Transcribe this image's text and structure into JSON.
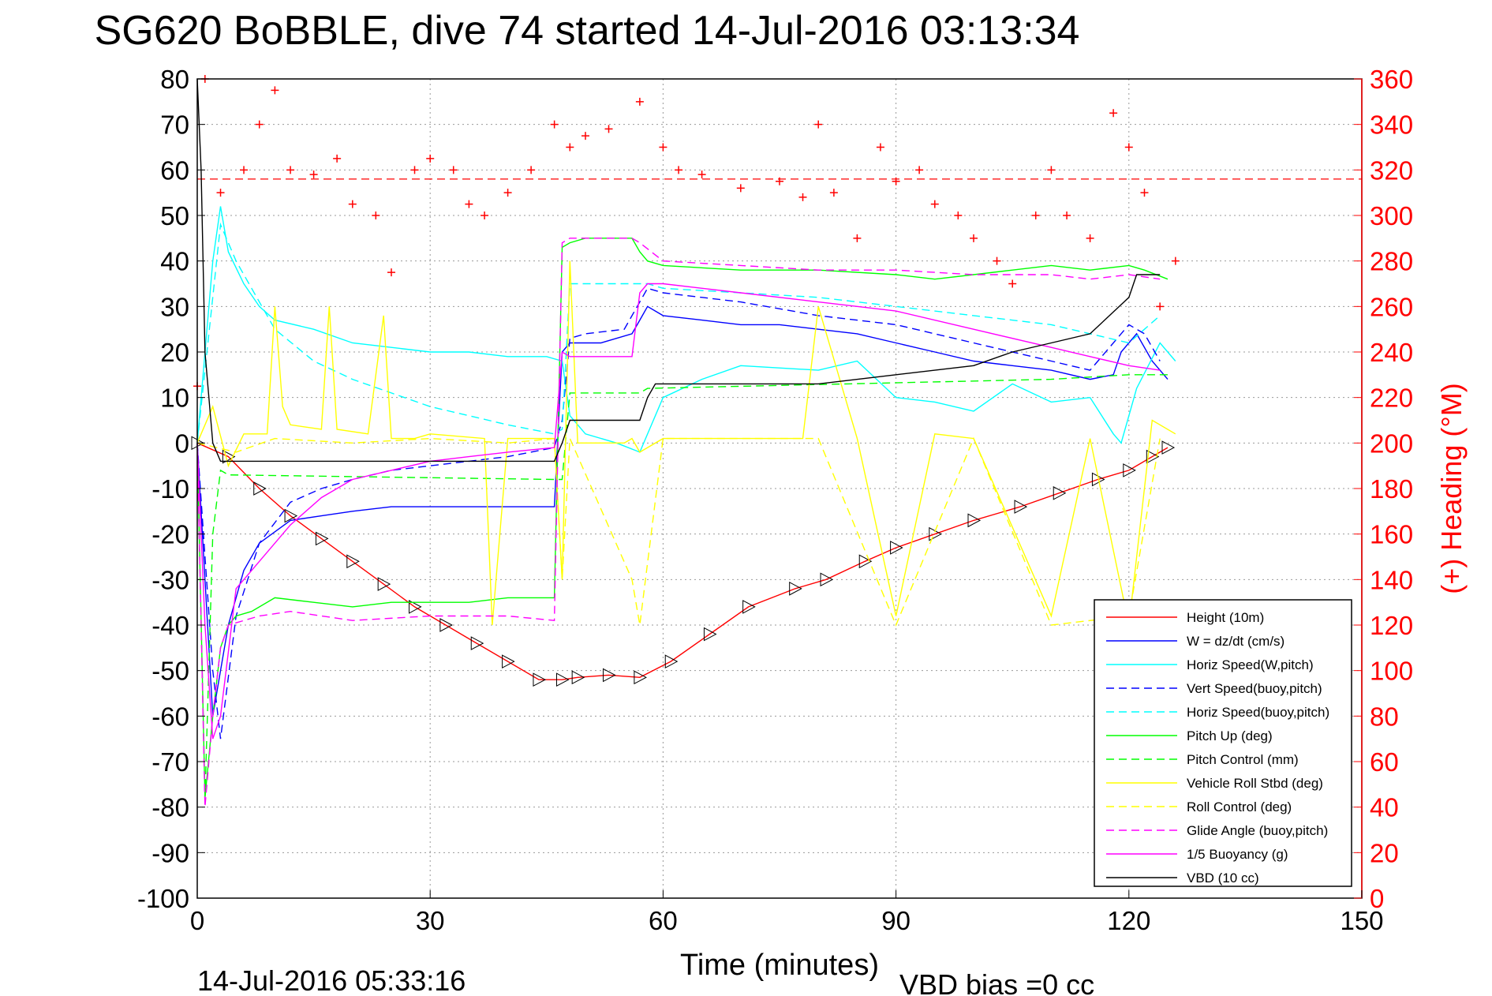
{
  "chart_data": {
    "type": "line",
    "title": "SG620 BoBBLE, dive 74 started 14-Jul-2016 03:13:34",
    "xlabel": "Time (minutes)",
    "ylabel_right": "(+) Heading (°M)",
    "footer_left": "14-Jul-2016 05:33:16",
    "footer_right": "VBD bias =0 cc",
    "xlim": [
      0,
      150
    ],
    "ylim": [
      -100,
      80
    ],
    "ylim_right": [
      0,
      360
    ],
    "xticks": [
      "0",
      "30",
      "60",
      "90",
      "120",
      "150"
    ],
    "yticks": [
      "80",
      "70",
      "60",
      "50",
      "40",
      "30",
      "20",
      "10",
      "0",
      "-10",
      "-20",
      "-30",
      "-40",
      "-50",
      "-60",
      "-70",
      "-80",
      "-90",
      "-100"
    ],
    "yticks_right": [
      "360",
      "340",
      "320",
      "300",
      "280",
      "260",
      "240",
      "220",
      "200",
      "180",
      "160",
      "140",
      "120",
      "100",
      "80",
      "60",
      "40",
      "20",
      "0"
    ],
    "grid": true,
    "legend_position": "bottom-right",
    "heading_reference_deg": 316,
    "series": [
      {
        "name": "Height (10m)",
        "color": "#ff0000",
        "dash": "solid",
        "x": [
          0,
          4,
          8,
          12,
          16,
          20,
          24,
          28,
          32,
          36,
          40,
          44,
          47,
          49,
          53,
          57,
          61,
          66,
          71,
          77,
          81,
          86,
          90,
          95,
          100,
          106,
          111,
          116,
          120,
          123,
          125
        ],
        "y": [
          0,
          -3,
          -10,
          -16,
          -21,
          -26,
          -31,
          -36,
          -40,
          -44,
          -48,
          -52,
          -52,
          -51.5,
          -51,
          -51.5,
          -48,
          -42,
          -36,
          -32,
          -30,
          -26,
          -23,
          -20,
          -17,
          -14,
          -11,
          -8,
          -6,
          -3,
          -1
        ]
      },
      {
        "name": "W = dz/dt (cm/s)",
        "color": "#0000ff",
        "dash": "solid",
        "x": [
          0,
          1,
          2,
          3,
          4,
          6,
          8,
          12,
          16,
          20,
          25,
          30,
          35,
          40,
          46,
          47,
          48,
          52,
          56,
          57,
          58,
          60,
          65,
          70,
          75,
          80,
          85,
          90,
          95,
          100,
          105,
          110,
          115,
          118,
          119,
          121,
          123,
          125
        ],
        "y": [
          0,
          -30,
          -60,
          -50,
          -40,
          -28,
          -22,
          -17,
          -16,
          -15,
          -14,
          -14,
          -14,
          -14,
          -14,
          20,
          22,
          22,
          24,
          27,
          30,
          28,
          27,
          26,
          26,
          25,
          24,
          22,
          20,
          18,
          17,
          16,
          14,
          15,
          20,
          24,
          18,
          14
        ]
      },
      {
        "name": "Horiz Speed(W,pitch)",
        "color": "#00ffff",
        "dash": "solid",
        "x": [
          0,
          2,
          3,
          4,
          6,
          8,
          10,
          15,
          20,
          25,
          30,
          35,
          40,
          45,
          47,
          48,
          50,
          54,
          57,
          60,
          65,
          70,
          80,
          85,
          90,
          95,
          100,
          105,
          110,
          115,
          118,
          119,
          121,
          124,
          126
        ],
        "y": [
          0,
          40,
          52,
          42,
          35,
          30,
          27,
          25,
          22,
          21,
          20,
          20,
          19,
          19,
          18,
          6,
          2,
          0,
          -2,
          10,
          14,
          17,
          16,
          18,
          10,
          9,
          7,
          13,
          9,
          10,
          2,
          0,
          12,
          22,
          18
        ]
      },
      {
        "name": "Vert Speed(buoy,pitch)",
        "color": "#0000ff",
        "dash": "dashed",
        "x": [
          0,
          2,
          3,
          5,
          8,
          12,
          16,
          20,
          25,
          30,
          35,
          40,
          46,
          47,
          48,
          50,
          55,
          58,
          60,
          70,
          80,
          90,
          100,
          110,
          115,
          120,
          122,
          124
        ],
        "y": [
          0,
          -50,
          -65,
          -38,
          -22,
          -13,
          -10,
          -8,
          -6,
          -5,
          -4,
          -3,
          -1,
          5,
          23,
          24,
          25,
          34,
          33,
          31,
          28,
          26,
          22,
          18,
          16,
          26,
          24,
          18
        ]
      },
      {
        "name": "Horiz Speed(buoy,pitch)",
        "color": "#00ffff",
        "dash": "dashed",
        "x": [
          0,
          3,
          5,
          10,
          15,
          20,
          25,
          30,
          35,
          40,
          46,
          47,
          48,
          55,
          58,
          60,
          70,
          80,
          90,
          100,
          110,
          115,
          120,
          122,
          124
        ],
        "y": [
          0,
          48,
          40,
          25,
          18,
          14,
          11,
          8,
          6,
          4,
          2,
          3,
          35,
          35,
          35,
          34,
          33,
          32,
          30,
          28,
          26,
          24,
          22,
          25,
          28
        ]
      },
      {
        "name": "Pitch Up (deg)",
        "color": "#00ff00",
        "dash": "solid",
        "x": [
          0,
          1,
          2,
          3,
          4,
          5,
          7,
          10,
          15,
          20,
          25,
          30,
          35,
          40,
          46,
          47,
          48,
          50,
          56,
          57,
          58,
          60,
          70,
          80,
          90,
          95,
          100,
          105,
          110,
          115,
          120,
          122,
          125
        ],
        "y": [
          0,
          -78,
          -60,
          -45,
          -40,
          -38,
          -37,
          -34,
          -35,
          -36,
          -35,
          -35,
          -35,
          -34,
          -34,
          43,
          44,
          45,
          45,
          42,
          40,
          39,
          38,
          38,
          37,
          36,
          37,
          38,
          39,
          38,
          39,
          38,
          36
        ]
      },
      {
        "name": "Pitch Control (mm)",
        "color": "#00ff00",
        "dash": "dashed",
        "x": [
          0,
          1,
          2,
          3,
          4,
          46,
          47,
          48,
          57,
          58,
          110,
          120,
          125
        ],
        "y": [
          0,
          -78,
          -20,
          -6,
          -7,
          -8,
          -8,
          11,
          11,
          12,
          14,
          15,
          15
        ]
      },
      {
        "name": "Vehicle Roll Stbd (deg)",
        "color": "#ffff00",
        "dash": "solid",
        "x": [
          0,
          2,
          4,
          6,
          9,
          10,
          11,
          12,
          16,
          17,
          18,
          22,
          24,
          25,
          28,
          30,
          37,
          38,
          40,
          46,
          47,
          48,
          49,
          55,
          56,
          57,
          60,
          70,
          78,
          80,
          85,
          90,
          95,
          100,
          110,
          115,
          120,
          123,
          126
        ],
        "y": [
          0,
          8,
          -5,
          2,
          2,
          30,
          8,
          4,
          3,
          30,
          3,
          2,
          28,
          1,
          1,
          2,
          1,
          -40,
          1,
          1,
          -30,
          40,
          0,
          0,
          1,
          -2,
          1,
          1,
          1,
          30,
          1,
          -38,
          2,
          1,
          -38,
          1,
          -40,
          5,
          2
        ]
      },
      {
        "name": "Roll Control (deg)",
        "color": "#ffff00",
        "dash": "dashed",
        "x": [
          0,
          5,
          10,
          20,
          30,
          40,
          46,
          47,
          48,
          56,
          57,
          60,
          70,
          80,
          90,
          100,
          110,
          120,
          124
        ],
        "y": [
          0,
          -2,
          1,
          0,
          1,
          0,
          1,
          -30,
          1,
          -30,
          -40,
          1,
          1,
          1,
          -40,
          1,
          -40,
          -38,
          1
        ]
      },
      {
        "name": "Glide Angle (buoy,pitch)",
        "color": "#ff00ff",
        "dash": "dashed",
        "x": [
          0,
          1,
          2,
          3,
          4,
          8,
          12,
          20,
          30,
          40,
          46,
          47,
          48,
          56,
          57,
          60,
          70,
          80,
          90,
          100,
          110,
          115,
          120,
          124
        ],
        "y": [
          0,
          -80,
          -60,
          -45,
          -40,
          -38,
          -37,
          -39,
          -38,
          -38,
          -39,
          44,
          45,
          45,
          44,
          40,
          39,
          38,
          38,
          37,
          37,
          36,
          37,
          36
        ]
      },
      {
        "name": "1/5 Buoyancy (g)",
        "color": "#ff00ff",
        "dash": "solid",
        "x": [
          0,
          1,
          2,
          3,
          5,
          8,
          12,
          16,
          20,
          25,
          30,
          35,
          40,
          46,
          47,
          48,
          56,
          57,
          58,
          60,
          70,
          80,
          90,
          100,
          110,
          115,
          120,
          124
        ],
        "y": [
          0,
          -40,
          -65,
          -60,
          -32,
          -26,
          -18,
          -12,
          -8,
          -6,
          -4,
          -3,
          -2,
          -1,
          20,
          19,
          19,
          33,
          35,
          35,
          33,
          31,
          29,
          25,
          21,
          19,
          17,
          16
        ]
      },
      {
        "name": "VBD (10 cc)",
        "color": "#000000",
        "dash": "solid",
        "x": [
          0,
          0.5,
          1,
          2,
          3,
          46,
          47,
          48,
          57,
          58,
          59,
          60,
          80,
          90,
          100,
          105,
          110,
          115,
          120,
          121,
          124
        ],
        "y": [
          80,
          60,
          20,
          0,
          -4,
          -4,
          0,
          5,
          5,
          10,
          13,
          13,
          13,
          15,
          17,
          20,
          22,
          24,
          32,
          37,
          37
        ]
      },
      {
        "name": "",
        "color": "#ff0000",
        "axis": "right",
        "marker": "+",
        "x": [
          0,
          1,
          3,
          6,
          8,
          10,
          12,
          15,
          18,
          20,
          23,
          25,
          28,
          30,
          33,
          35,
          37,
          40,
          43,
          46,
          48,
          50,
          53,
          57,
          60,
          62,
          65,
          70,
          75,
          78,
          80,
          82,
          85,
          88,
          90,
          93,
          95,
          98,
          100,
          103,
          105,
          108,
          110,
          112,
          115,
          118,
          120,
          122,
          124,
          126
        ],
        "y": [
          225,
          360,
          310,
          320,
          340,
          355,
          320,
          318,
          325,
          305,
          300,
          275,
          320,
          325,
          320,
          305,
          300,
          310,
          320,
          340,
          330,
          335,
          338,
          350,
          330,
          320,
          318,
          312,
          315,
          308,
          340,
          310,
          290,
          330,
          315,
          320,
          305,
          300,
          290,
          280,
          270,
          300,
          320,
          300,
          290,
          345,
          330,
          310,
          260,
          280
        ]
      }
    ]
  }
}
